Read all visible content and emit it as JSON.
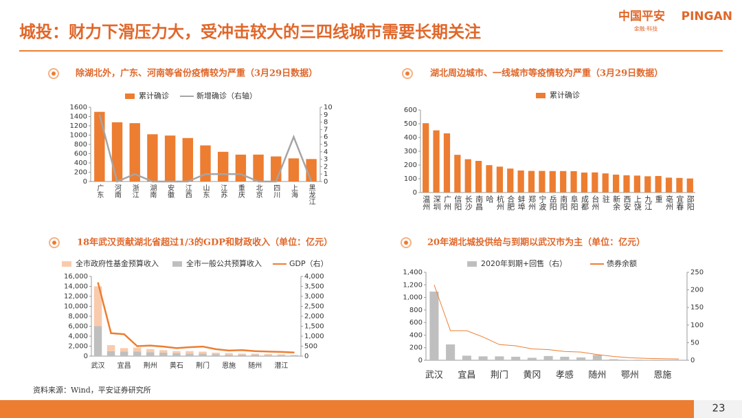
{
  "header": {
    "title": "城投：财力下滑压力大，受冲击较大的三四线城市需要长期关注",
    "logo_cn": "中国平安",
    "logo_en": "PINGAN",
    "logo_tagline": "金融·科技"
  },
  "source": "资料来源：Wind，平安证券研究所",
  "page_number": "23",
  "chart_data": [
    {
      "type": "combo",
      "title": "除湖北外，广东、河南等省份疫情较为严重（3月29日数据）",
      "categories": [
        "广东",
        "河南",
        "浙江",
        "湖南",
        "安徽",
        "江西",
        "山东",
        "江苏",
        "重庆",
        "北京",
        "四川",
        "上海",
        "黑龙江"
      ],
      "series": [
        {
          "name": "累计确诊",
          "kind": "bar",
          "color": "#ED7D31",
          "values": [
            1501,
            1276,
            1257,
            1018,
            990,
            937,
            778,
            640,
            579,
            580,
            540,
            498,
            484
          ]
        },
        {
          "name": "新增确诊（右轴）",
          "kind": "line",
          "axis": "y2",
          "color": "#A5A5A5",
          "values": [
            9,
            0,
            1,
            0,
            0,
            0,
            1,
            1,
            1,
            0,
            0,
            6,
            0
          ]
        }
      ],
      "ylim": [
        0,
        1600
      ],
      "yticks": [
        0,
        200,
        400,
        600,
        800,
        1000,
        1200,
        1400,
        1600
      ],
      "y2lim": [
        0,
        10
      ],
      "y2ticks": [
        0,
        1,
        2,
        3,
        4,
        5,
        6,
        7,
        8,
        9,
        10
      ]
    },
    {
      "type": "bar",
      "title": "湖北周边城市、一线城市等疫情较为严重（3月29日数据）",
      "categories": [
        "温州",
        "深圳",
        "广州",
        "信阳",
        "长沙",
        "南昌",
        "哈",
        "杭州",
        "合肥",
        "蚌埠",
        "郑州",
        "宁波",
        "岳阳",
        "南阳",
        "阜阳",
        "成都",
        "台州",
        "驻",
        "新余",
        "西安",
        "上饶",
        "九江",
        "重",
        "亳州",
        "宜春",
        "邵阳"
      ],
      "series": [
        {
          "name": "累计确诊",
          "kind": "bar",
          "color": "#ED7D31",
          "values": [
            504,
            452,
            430,
            274,
            242,
            230,
            199,
            188,
            174,
            160,
            157,
            157,
            156,
            156,
            155,
            145,
            146,
            139,
            130,
            125,
            123,
            118,
            120,
            108,
            106,
            102
          ]
        }
      ],
      "ylim": [
        0,
        600
      ],
      "yticks": [
        0,
        100,
        200,
        300,
        400,
        500,
        600
      ]
    },
    {
      "type": "combo",
      "title": "18年武汉贡献湖北省超过1/3的GDP和财政收入（单位：亿元）",
      "stacked": true,
      "categories": [
        "武汉",
        null,
        "宜昌",
        null,
        "荆州",
        null,
        "黄石",
        null,
        "荆门",
        null,
        "恩施",
        null,
        "随州",
        null,
        "潜江",
        null
      ],
      "series": [
        {
          "name": "全市政府性基金预算收入",
          "kind": "bar",
          "color": "#F8CBAD",
          "values": [
            8000,
            1200,
            700,
            800,
            600,
            500,
            400,
            500,
            400,
            300,
            300,
            200,
            200,
            200,
            150,
            100
          ]
        },
        {
          "name": "全市一般公共预算收入",
          "kind": "bar",
          "color": "#BFBFBF",
          "values": [
            6000,
            1000,
            900,
            900,
            800,
            700,
            600,
            500,
            500,
            400,
            300,
            300,
            300,
            200,
            200,
            150
          ]
        },
        {
          "name": "GDP（右）",
          "kind": "line",
          "axis": "y2",
          "color": "#ED7D31",
          "values": [
            3700,
            1150,
            1100,
            500,
            530,
            480,
            400,
            450,
            480,
            350,
            280,
            300,
            250,
            230,
            210,
            180
          ]
        }
      ],
      "ylim": [
        0,
        16000
      ],
      "yticks": [
        0,
        {
          "value": 2000,
          "label": "2,000"
        },
        {
          "value": 4000,
          "label": "4,000"
        },
        {
          "value": 6000,
          "label": "6,000"
        },
        {
          "value": 8000,
          "label": "8,000"
        },
        {
          "value": 10000,
          "label": "10,000"
        },
        {
          "value": 12000,
          "label": "12,000"
        },
        {
          "value": 14000,
          "label": "14,000"
        },
        {
          "value": 16000,
          "label": "16,000"
        }
      ],
      "y2lim": [
        0,
        4000
      ],
      "y2ticks": [
        0,
        500,
        {
          "value": 1000,
          "label": "1,000"
        },
        {
          "value": 1500,
          "label": "1,500"
        },
        {
          "value": 2000,
          "label": "2,000"
        },
        {
          "value": 2500,
          "label": "2,500"
        },
        {
          "value": 3000,
          "label": "3,000"
        },
        {
          "value": 3500,
          "label": "3,500"
        },
        {
          "value": 4000,
          "label": "4,000"
        }
      ]
    },
    {
      "type": "combo",
      "title": "20年湖北城投供给与到期以武汉市为主（单位：亿元）",
      "categories": [
        "武汉",
        null,
        "宜昌",
        null,
        "荆门",
        null,
        "黄冈",
        null,
        "孝感",
        null,
        "随州",
        null,
        "鄂州",
        null,
        "恩施",
        null
      ],
      "series": [
        {
          "name": "2020年到期+回售（右）",
          "kind": "bar",
          "axis": "y2",
          "color": "#BFBFBF",
          "values": [
            195,
            45,
            13,
            11,
            11,
            10,
            7,
            12,
            10,
            8,
            15,
            3,
            1,
            1,
            0,
            0
          ]
        },
        {
          "name": "债券余额",
          "kind": "line",
          "color": "#ED7D31",
          "values": [
            1200,
            470,
            470,
            370,
            250,
            230,
            180,
            170,
            140,
            130,
            90,
            60,
            40,
            30,
            25,
            20
          ]
        }
      ],
      "ylim": [
        0,
        1400
      ],
      "yticks": [
        0,
        200,
        400,
        600,
        800,
        {
          "value": 1000,
          "label": "1,000"
        },
        {
          "value": 1200,
          "label": "1,200"
        },
        {
          "value": 1400,
          "label": "1,400"
        }
      ],
      "y2lim": [
        0,
        250
      ],
      "y2ticks": [
        0,
        50,
        100,
        150,
        200,
        250
      ]
    }
  ]
}
